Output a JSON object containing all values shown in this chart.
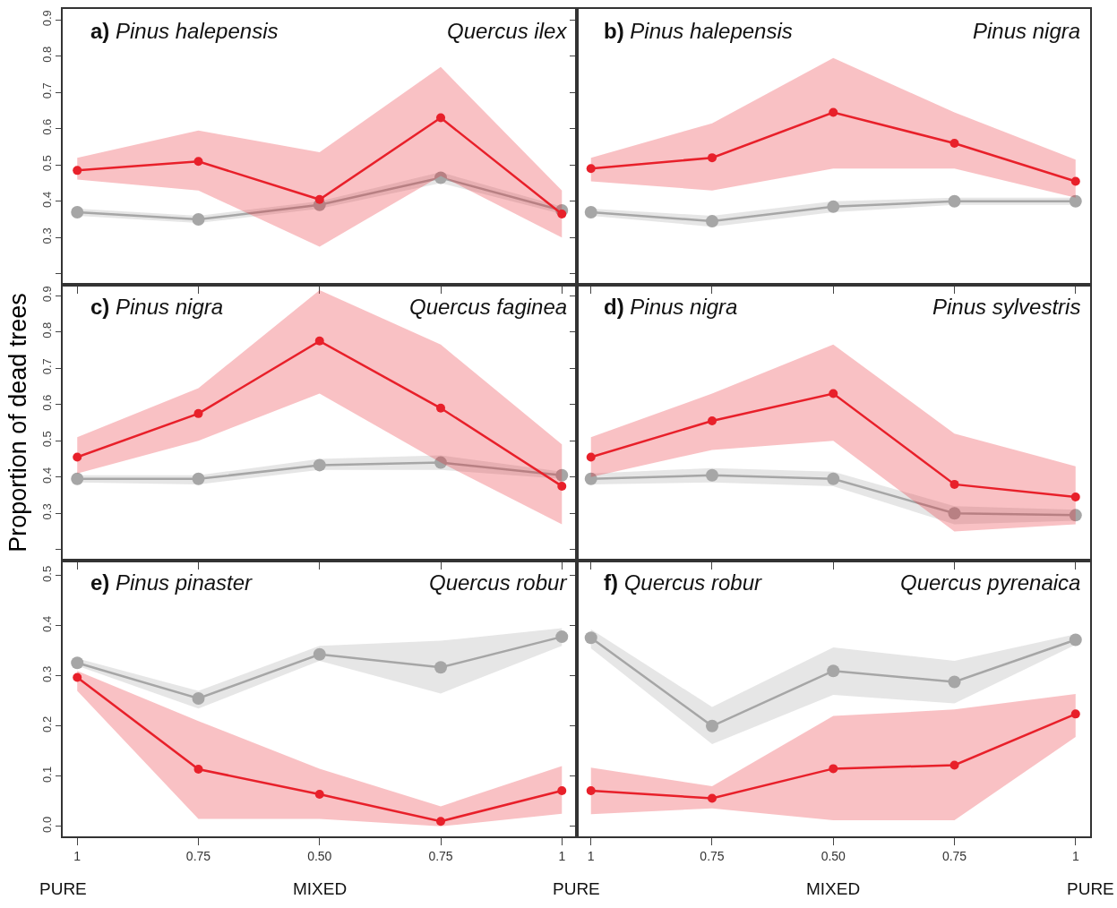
{
  "chart_data": [
    {
      "type": "line",
      "title": "a) Pinus halepensis",
      "subtitle": "Quercus ilex",
      "categories": [
        "1",
        "0.75",
        "0.50",
        "0.75",
        "1"
      ],
      "ylim": [
        0.17,
        0.93
      ],
      "yticks": [
        {
          "value": 0.2,
          "label": null
        },
        0.3,
        0.4,
        0.5,
        0.6,
        0.7,
        0.8,
        0.9
      ],
      "tick_labels": "y",
      "marker": "circle",
      "line_style": "solid",
      "series": [
        {
          "color": "#e8202a",
          "values": [
            0.485,
            0.51,
            0.405,
            0.63,
            0.365
          ],
          "lower": [
            0.46,
            0.43,
            0.275,
            0.47,
            0.3
          ],
          "upper": [
            0.52,
            0.595,
            0.535,
            0.77,
            0.43
          ]
        },
        {
          "color": "#a6a6a6",
          "values": [
            0.37,
            0.35,
            0.39,
            0.465,
            0.375
          ],
          "lower": [
            0.36,
            0.34,
            0.38,
            0.45,
            0.365
          ],
          "upper": [
            0.38,
            0.36,
            0.4,
            0.48,
            0.385
          ]
        }
      ]
    },
    {
      "type": "line",
      "title": "b) Pinus halepensis",
      "subtitle": "Pinus nigra",
      "categories": [
        "1",
        "0.75",
        "0.50",
        "0.75",
        "1"
      ],
      "ylim": [
        0.17,
        0.93
      ],
      "yticks": [
        {
          "value": 0.2,
          "label": null
        },
        {
          "value": 0.3,
          "label": null
        },
        {
          "value": 0.4,
          "label": null
        },
        {
          "value": 0.5,
          "label": null
        },
        {
          "value": 0.6,
          "label": null
        },
        {
          "value": 0.7,
          "label": null
        },
        {
          "value": 0.8,
          "label": null
        },
        {
          "value": 0.9,
          "label": null
        }
      ],
      "tick_labels": false,
      "marker": "circle",
      "line_style": "solid",
      "series": [
        {
          "color": "#e8202a",
          "values": [
            0.49,
            0.52,
            0.645,
            0.56,
            0.455
          ],
          "lower": [
            0.455,
            0.43,
            0.49,
            0.49,
            0.41
          ],
          "upper": [
            0.52,
            0.615,
            0.795,
            0.645,
            0.515
          ]
        },
        {
          "color": "#a6a6a6",
          "values": [
            0.37,
            0.345,
            0.385,
            0.4,
            0.4
          ],
          "lower": [
            0.36,
            0.33,
            0.37,
            0.39,
            0.39
          ],
          "upper": [
            0.38,
            0.36,
            0.4,
            0.41,
            0.41
          ]
        }
      ]
    },
    {
      "type": "line",
      "title": "c) Pinus nigra",
      "subtitle": "Quercus faginea",
      "ylabel": "Proportion of dead trees",
      "categories": [
        "1",
        "0.75",
        "0.50",
        "0.75",
        "1"
      ],
      "ylim": [
        0.17,
        0.93
      ],
      "yticks": [
        {
          "value": 0.2,
          "label": null
        },
        0.3,
        0.4,
        0.5,
        0.6,
        0.7,
        0.8,
        0.9
      ],
      "tick_labels": "y",
      "marker": "circle",
      "line_style": "solid",
      "series": [
        {
          "color": "#e8202a",
          "values": [
            0.455,
            0.575,
            0.775,
            0.59,
            0.375
          ],
          "lower": [
            0.41,
            0.5,
            0.63,
            0.44,
            0.27
          ],
          "upper": [
            0.51,
            0.645,
            0.915,
            0.765,
            0.49
          ]
        },
        {
          "color": "#a6a6a6",
          "values": [
            0.395,
            0.395,
            0.433,
            0.44,
            0.405
          ],
          "lower": [
            0.385,
            0.38,
            0.42,
            0.42,
            0.395
          ],
          "upper": [
            0.405,
            0.405,
            0.45,
            0.46,
            0.415
          ]
        }
      ]
    },
    {
      "type": "line",
      "title": "d) Pinus nigra",
      "subtitle": "Pinus sylvestris",
      "categories": [
        "1",
        "0.75",
        "0.50",
        "0.75",
        "1"
      ],
      "ylim": [
        0.17,
        0.93
      ],
      "yticks": [
        {
          "value": 0.2,
          "label": null
        },
        {
          "value": 0.3,
          "label": null
        },
        {
          "value": 0.4,
          "label": null
        },
        {
          "value": 0.5,
          "label": null
        },
        {
          "value": 0.6,
          "label": null
        },
        {
          "value": 0.7,
          "label": null
        },
        {
          "value": 0.8,
          "label": null
        },
        {
          "value": 0.9,
          "label": null
        }
      ],
      "tick_labels": false,
      "marker": "circle",
      "line_style": "solid",
      "series": [
        {
          "color": "#e8202a",
          "values": [
            0.455,
            0.555,
            0.63,
            0.38,
            0.345
          ],
          "lower": [
            0.4,
            0.475,
            0.5,
            0.25,
            0.27
          ],
          "upper": [
            0.51,
            0.63,
            0.765,
            0.52,
            0.43
          ]
        },
        {
          "color": "#a6a6a6",
          "values": [
            0.395,
            0.405,
            0.395,
            0.3,
            0.295
          ],
          "lower": [
            0.38,
            0.385,
            0.375,
            0.27,
            0.28
          ],
          "upper": [
            0.41,
            0.425,
            0.415,
            0.32,
            0.31
          ]
        }
      ]
    },
    {
      "type": "line",
      "title": "e) Pinus pinaster",
      "subtitle": "Quercus robur",
      "categories": [
        "1",
        "0.75",
        "0.50",
        "0.75",
        "1"
      ],
      "ylim": [
        -0.02,
        0.53
      ],
      "yticks": [
        {
          "value": 0,
          "label": "0.0"
        },
        0.1,
        0.2,
        0.3,
        0.4,
        0.5
      ],
      "marker": "circle",
      "line_style": "solid",
      "annotations": [
        "PURE",
        "MIXED",
        "PURE"
      ],
      "series": [
        {
          "color": "#e8202a",
          "values": [
            0.297,
            0.114,
            0.064,
            0.01,
            0.071
          ],
          "lower": [
            0.27,
            0.015,
            0.015,
            0.0,
            0.025
          ],
          "upper": [
            0.31,
            0.21,
            0.115,
            0.04,
            0.12
          ]
        },
        {
          "color": "#a6a6a6",
          "values": [
            0.326,
            0.255,
            0.343,
            0.317,
            0.378
          ],
          "lower": [
            0.32,
            0.235,
            0.33,
            0.265,
            0.36
          ],
          "upper": [
            0.335,
            0.27,
            0.36,
            0.37,
            0.395
          ]
        }
      ]
    },
    {
      "type": "line",
      "title": "f) Quercus robur",
      "subtitle": "Quercus pyrenaica",
      "categories": [
        "1",
        "0.75",
        "0.50",
        "0.75",
        "1"
      ],
      "ylim": [
        -0.02,
        0.53
      ],
      "yticks": [
        {
          "value": 0,
          "label": null
        },
        {
          "value": 0.1,
          "label": null
        },
        {
          "value": 0.2,
          "label": null
        },
        {
          "value": 0.3,
          "label": null
        },
        {
          "value": 0.4,
          "label": null
        },
        {
          "value": 0.5,
          "label": null
        }
      ],
      "tick_labels": "x",
      "marker": "circle",
      "line_style": "solid",
      "annotations": [
        "MIXED",
        "PURE"
      ],
      "series": [
        {
          "color": "#e8202a",
          "values": [
            0.071,
            0.056,
            0.115,
            0.122,
            0.224
          ],
          "lower": [
            0.024,
            0.036,
            0.012,
            0.012,
            0.178
          ],
          "upper": [
            0.117,
            0.08,
            0.22,
            0.233,
            0.264
          ]
        },
        {
          "color": "#a6a6a6",
          "values": [
            0.376,
            0.2,
            0.31,
            0.288,
            0.372
          ],
          "lower": [
            0.355,
            0.164,
            0.262,
            0.245,
            0.362
          ],
          "upper": [
            0.393,
            0.238,
            0.357,
            0.33,
            0.383
          ]
        }
      ]
    }
  ]
}
